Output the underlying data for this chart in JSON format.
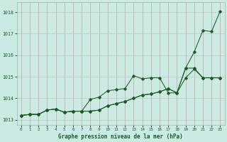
{
  "title": "Graphe pression niveau de la mer (hPa)",
  "background_color": "#cceae4",
  "grid_color_v": "#c8a0a8",
  "grid_color_h": "#c0c8c0",
  "line_color": "#1a5c20",
  "xlim": [
    -0.5,
    23.5
  ],
  "ylim": [
    1012.75,
    1018.45
  ],
  "yticks": [
    1013,
    1014,
    1015,
    1016,
    1017,
    1018
  ],
  "xticks": [
    0,
    1,
    2,
    3,
    4,
    5,
    6,
    7,
    8,
    9,
    10,
    11,
    12,
    13,
    14,
    15,
    16,
    17,
    18,
    19,
    20,
    21,
    22,
    23
  ],
  "line1": [
    1013.2,
    1013.25,
    1013.25,
    1013.45,
    1013.5,
    1013.35,
    1013.4,
    1013.4,
    1013.95,
    1014.05,
    1014.35,
    1014.4,
    1014.45,
    1015.05,
    1014.9,
    1014.95,
    1014.95,
    1014.25,
    1014.25,
    1015.4,
    1015.4,
    1014.95,
    1014.95,
    1014.95
  ],
  "line2": [
    1013.2,
    1013.25,
    1013.25,
    1013.45,
    1013.5,
    1013.35,
    1013.4,
    1013.4,
    1013.4,
    1013.45,
    1013.65,
    1013.75,
    1013.85,
    1014.0,
    1014.15,
    1014.2,
    1014.3,
    1014.45,
    1014.25,
    1014.95,
    1015.35,
    1014.95,
    1014.95,
    1014.95
  ],
  "line3": [
    1013.2,
    1013.25,
    1013.25,
    1013.45,
    1013.5,
    1013.35,
    1013.4,
    1013.4,
    1013.4,
    1013.45,
    1013.65,
    1013.75,
    1013.85,
    1014.0,
    1014.15,
    1014.2,
    1014.3,
    1014.45,
    1014.25,
    1015.4,
    1016.15,
    1017.15,
    1017.1,
    1018.05
  ]
}
